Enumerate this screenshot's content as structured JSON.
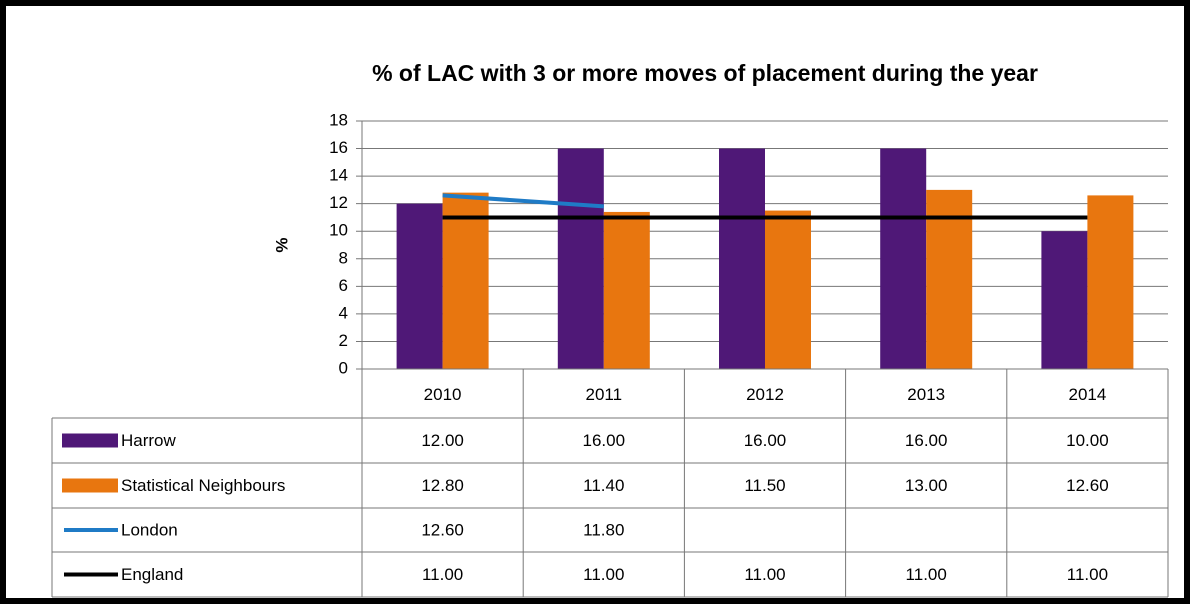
{
  "chart_data": {
    "type": "bar",
    "title": "% of LAC with 3 or more moves of placement during the year",
    "y_label": "%",
    "categories": [
      "2010",
      "2011",
      "2012",
      "2013",
      "2014"
    ],
    "series": [
      {
        "name": "Harrow",
        "type": "bar",
        "color": "#4f1877",
        "values": [
          12,
          16,
          16,
          16,
          10
        ],
        "value_labels": [
          "12.00",
          "16.00",
          "16.00",
          "16.00",
          "10.00"
        ]
      },
      {
        "name": "Statistical Neighbours",
        "type": "bar",
        "color": "#e8760f",
        "values": [
          12.8,
          11.4,
          11.5,
          13,
          12.6
        ],
        "value_labels": [
          "12.80",
          "11.40",
          "11.50",
          "13.00",
          "12.60"
        ]
      },
      {
        "name": "London",
        "type": "line",
        "color": "#1f7bc6",
        "values": [
          12.6,
          11.8,
          null,
          null,
          null
        ],
        "value_labels": [
          "12.60",
          "11.80",
          null,
          null,
          null
        ]
      },
      {
        "name": "England",
        "type": "line",
        "color": "#000000",
        "values": [
          11,
          11,
          11,
          11,
          11
        ],
        "value_labels": [
          "11.00",
          "11.00",
          "11.00",
          "11.00",
          "11.00"
        ]
      }
    ],
    "ylim": [
      0,
      18
    ],
    "yticks": [
      0,
      2,
      4,
      6,
      8,
      10,
      12,
      14,
      16,
      18
    ],
    "grid": true
  }
}
